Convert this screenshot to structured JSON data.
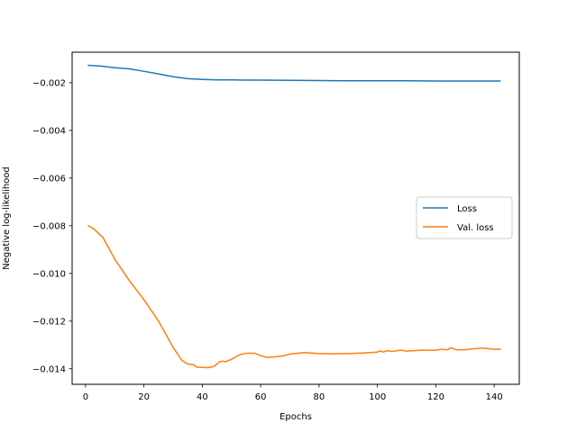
{
  "chart_data": {
    "type": "line",
    "title": "",
    "xlabel": "Epochs",
    "ylabel": "Negative log-likelihood",
    "xlim": [
      -4.6,
      148.6
    ],
    "ylim": [
      -0.01465,
      -0.00072
    ],
    "xticks": [
      0,
      20,
      40,
      60,
      80,
      100,
      120,
      140
    ],
    "xtick_labels": [
      "0",
      "20",
      "40",
      "60",
      "80",
      "100",
      "120",
      "140"
    ],
    "yticks": [
      -0.014,
      -0.012,
      -0.01,
      -0.008,
      -0.006,
      -0.004,
      -0.002
    ],
    "ytick_labels": [
      "−0.014",
      "−0.012",
      "−0.010",
      "−0.008",
      "−0.006",
      "−0.004",
      "−0.002"
    ],
    "grid": false,
    "legend_position": "center-right",
    "series": [
      {
        "name": "Loss",
        "color": "#1f77b4",
        "x": [
          1,
          5,
          10,
          15,
          20,
          25,
          30,
          35,
          40,
          45,
          50,
          55,
          60,
          70,
          80,
          90,
          100,
          110,
          120,
          130,
          142
        ],
        "y": [
          -0.00127,
          -0.0013,
          -0.00137,
          -0.00142,
          -0.00152,
          -0.00163,
          -0.00175,
          -0.00183,
          -0.00186,
          -0.00188,
          -0.00188,
          -0.00189,
          -0.00189,
          -0.0019,
          -0.00191,
          -0.00192,
          -0.00192,
          -0.00192,
          -0.00193,
          -0.00193,
          -0.00193
        ]
      },
      {
        "name": "Val. loss",
        "color": "#ff7f0e",
        "x": [
          1,
          3,
          6,
          10,
          15,
          20,
          25,
          30,
          33,
          35,
          37,
          38,
          40,
          42,
          44,
          46,
          47,
          48,
          50,
          53,
          55,
          58,
          60,
          62,
          65,
          68,
          70,
          75,
          80,
          85,
          90,
          95,
          100,
          101,
          102,
          103,
          105,
          108,
          110,
          115,
          120,
          122,
          124,
          125,
          127,
          130,
          133,
          136,
          140,
          142
        ],
        "y": [
          -0.008,
          -0.00815,
          -0.0085,
          -0.0094,
          -0.0103,
          -0.0111,
          -0.012,
          -0.0131,
          -0.01365,
          -0.0138,
          -0.01382,
          -0.01393,
          -0.01394,
          -0.01395,
          -0.0139,
          -0.0137,
          -0.01368,
          -0.0137,
          -0.0136,
          -0.0134,
          -0.01335,
          -0.01335,
          -0.01345,
          -0.01352,
          -0.0135,
          -0.01345,
          -0.01338,
          -0.01332,
          -0.01336,
          -0.01337,
          -0.01336,
          -0.01334,
          -0.0133,
          -0.01325,
          -0.0133,
          -0.01324,
          -0.01327,
          -0.01322,
          -0.01326,
          -0.01322,
          -0.01322,
          -0.01318,
          -0.0132,
          -0.01312,
          -0.0132,
          -0.0132,
          -0.01316,
          -0.01313,
          -0.01318,
          -0.01318
        ]
      }
    ]
  }
}
